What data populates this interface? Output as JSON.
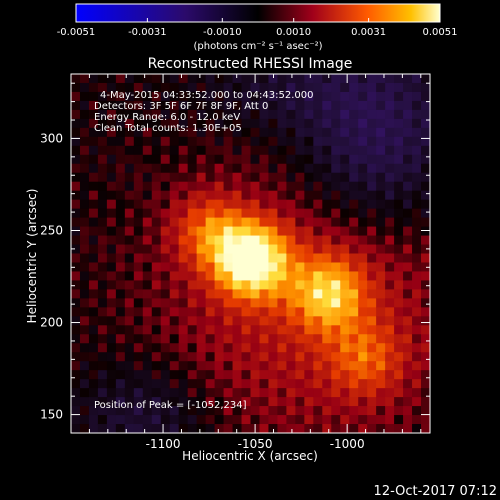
{
  "colorbar": {
    "ticks": [
      "-0.0051",
      "-0.0031",
      "-0.0010",
      "0.0010",
      "0.0031",
      "0.0051"
    ],
    "units_label": "(photons cm⁻² s⁻¹ asec⁻²)",
    "range": [
      -0.0051,
      0.0051
    ]
  },
  "title": "Reconstructed RHESSI Image",
  "info": {
    "time": "4-May-2015 04:33:52.000 to 04:43:52.000",
    "detectors": "Detectors: 3F 5F 6F 7F 8F 9F, Att 0",
    "energy": "Energy Range: 6.0 - 12.0 keV",
    "clean": "Clean    Total counts: 1.30E+05"
  },
  "peak_label": "Position of Peak = [-1052,234]",
  "footer_date": "12-Oct-2017 07:12",
  "chart_data": {
    "type": "heatmap",
    "title": "Reconstructed RHESSI Image",
    "xlabel": "Heliocentric X (arcsec)",
    "ylabel": "Heliocentric Y (arcsec)",
    "xlim": [
      -1150,
      -955
    ],
    "ylim": [
      140,
      335
    ],
    "x_ticks": [
      "-1100",
      "-1050",
      "-1000"
    ],
    "x_tick_values": [
      -1100,
      -1050,
      -1000
    ],
    "y_ticks": [
      "150",
      "200",
      "250",
      "300"
    ],
    "y_tick_values": [
      150,
      200,
      250,
      300
    ],
    "peak": [
      -1052,
      234
    ],
    "color_table": "red temperature",
    "sources": [
      {
        "x": -1052,
        "y": 234,
        "intensity": 0.0051
      },
      {
        "x": -1010,
        "y": 216,
        "intensity": 0.0032
      },
      {
        "x": -1075,
        "y": 250,
        "intensity": 0.0022
      },
      {
        "x": -990,
        "y": 180,
        "intensity": 0.0018
      }
    ]
  }
}
